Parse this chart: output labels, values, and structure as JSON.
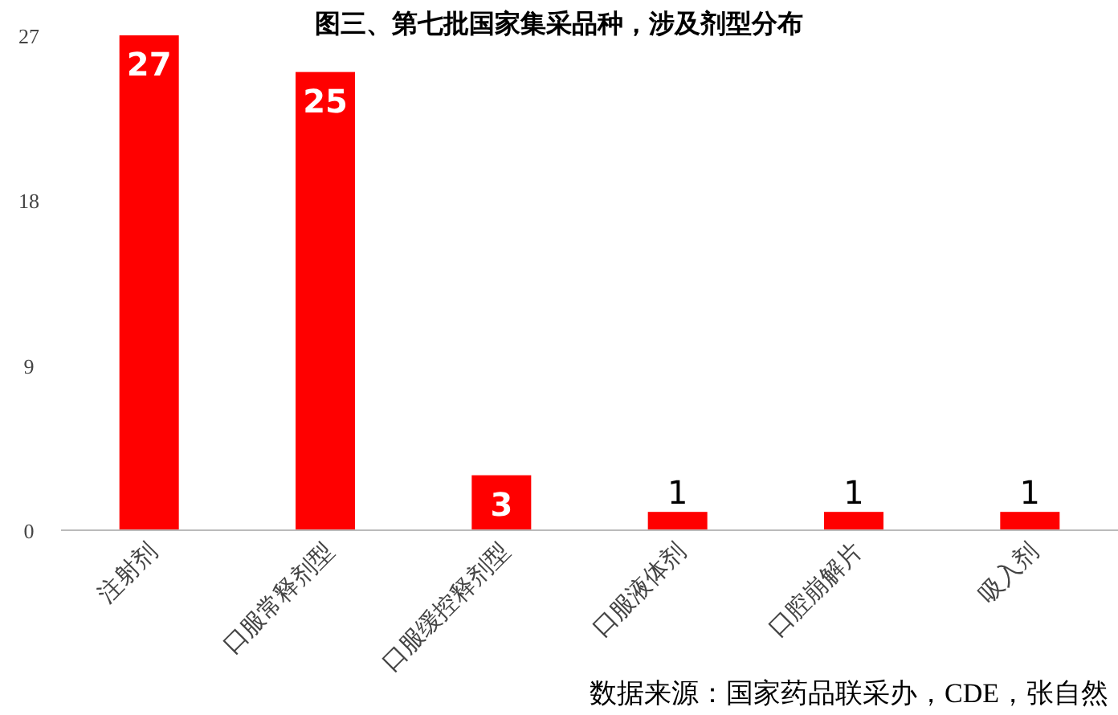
{
  "chart_data": {
    "type": "bar",
    "title": "图三、第七批国家集采品种，涉及剂型分布",
    "categories": [
      "注射剂",
      "口服常释剂型",
      "口服缓控释剂型",
      "口服液体剂",
      "口腔崩解片",
      "吸入剂"
    ],
    "values": [
      27,
      25,
      3,
      1,
      1,
      1
    ],
    "color": "#ff0000",
    "ylim": [
      0,
      27
    ],
    "yticks": [
      0,
      9,
      18,
      27
    ],
    "grid": false,
    "data_labels": true,
    "annotations": [
      "数据来源：国家药品联采办，CDE，张自然"
    ]
  }
}
